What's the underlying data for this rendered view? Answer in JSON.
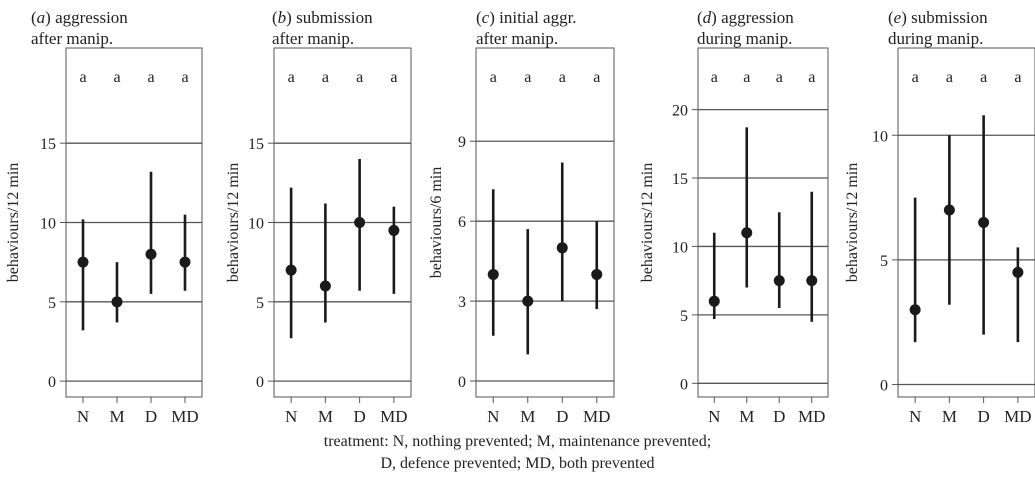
{
  "caption": {
    "line1": "treatment: N, nothing prevented; M, maintenance prevented;",
    "line2": "D, defence prevented; MD, both prevented"
  },
  "colors": {
    "marker": "#1a1a1a",
    "frame": "#555555",
    "gridline": "#555555"
  },
  "chart_data": [
    {
      "type": "scatter",
      "panel_letter": "a",
      "title_line1": "aggression",
      "title_line2": "after manip.",
      "ylabel": "behaviours/12 min",
      "categories": [
        "N",
        "M",
        "D",
        "MD"
      ],
      "values": [
        7.5,
        5,
        8,
        7.5
      ],
      "lower": [
        3.2,
        3.7,
        5.5,
        5.7
      ],
      "upper": [
        10.2,
        7.5,
        13.2,
        10.5
      ],
      "significance": [
        "a",
        "a",
        "a",
        "a"
      ],
      "yticks": [
        0,
        5,
        10,
        15
      ],
      "ylim": [
        -1,
        21
      ],
      "grid": true
    },
    {
      "type": "scatter",
      "panel_letter": "b",
      "title_line1": "submission",
      "title_line2": "after manip.",
      "ylabel": "behaviours/12 min",
      "categories": [
        "N",
        "M",
        "D",
        "MD"
      ],
      "values": [
        7,
        6,
        10,
        9.5
      ],
      "lower": [
        2.7,
        3.7,
        5.7,
        5.5
      ],
      "upper": [
        12.2,
        11.2,
        14.0,
        11.0
      ],
      "significance": [
        "a",
        "a",
        "a",
        "a"
      ],
      "yticks": [
        0,
        5,
        10,
        15
      ],
      "ylim": [
        -1,
        21
      ],
      "grid": true
    },
    {
      "type": "scatter",
      "panel_letter": "c",
      "title_line1": "initial aggr.",
      "title_line2": "after manip.",
      "ylabel": "behaviours/6 min",
      "categories": [
        "N",
        "M",
        "D",
        "MD"
      ],
      "values": [
        4,
        3,
        5,
        4
      ],
      "lower": [
        1.7,
        1.0,
        3.0,
        2.7
      ],
      "upper": [
        7.2,
        5.7,
        8.2,
        6.0
      ],
      "significance": [
        "a",
        "a",
        "a",
        "a"
      ],
      "yticks": [
        0,
        3,
        6,
        9
      ],
      "ylim": [
        -0.6,
        12.5
      ],
      "grid": true
    },
    {
      "type": "scatter",
      "panel_letter": "d",
      "title_line1": "aggression",
      "title_line2": "during manip.",
      "ylabel": "behaviours/12 min",
      "categories": [
        "N",
        "M",
        "D",
        "MD"
      ],
      "values": [
        6,
        11,
        7.5,
        7.5
      ],
      "lower": [
        4.7,
        7.0,
        5.5,
        4.5
      ],
      "upper": [
        11.0,
        18.7,
        12.5,
        14.0
      ],
      "significance": [
        "a",
        "a",
        "a",
        "a"
      ],
      "yticks": [
        0,
        5,
        10,
        15,
        20
      ],
      "ylim": [
        -1,
        24.5
      ],
      "grid": true
    },
    {
      "type": "scatter",
      "panel_letter": "e",
      "title_line1": "submission",
      "title_line2": "during manip.",
      "ylabel": "behaviours/12 min",
      "categories": [
        "N",
        "M",
        "D",
        "MD"
      ],
      "values": [
        3,
        7,
        6.5,
        4.5
      ],
      "lower": [
        1.7,
        3.2,
        2.0,
        1.7
      ],
      "upper": [
        7.5,
        10.0,
        10.8,
        5.5
      ],
      "significance": [
        "a",
        "a",
        "a",
        "a"
      ],
      "yticks": [
        0,
        5,
        10
      ],
      "ylim": [
        -0.5,
        13.5
      ],
      "grid": true
    }
  ]
}
